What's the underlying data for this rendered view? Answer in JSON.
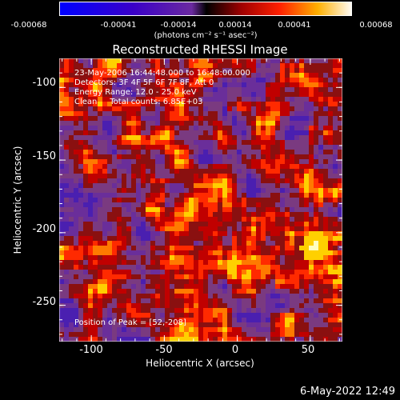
{
  "colorbar": {
    "ticks": [
      "-0.00068",
      "-0.00041",
      "-0.00014",
      "0.00014",
      "0.00041",
      "0.00068"
    ],
    "unit_label": "(photons cm⁻² s⁻¹ asec⁻²)"
  },
  "chart_data": {
    "type": "heatmap",
    "title": "Reconstructed RHESSI Image",
    "xlabel": "Heliocentric X (arcsec)",
    "ylabel": "Heliocentric Y (arcsec)",
    "xlim": [
      -122,
      72
    ],
    "ylim": [
      -275,
      -80
    ],
    "xticks": [
      "-100",
      "-50",
      "0",
      "50"
    ],
    "yticks": [
      "-100",
      "-150",
      "-200",
      "-250"
    ],
    "xtick_values": [
      -100,
      -50,
      0,
      50
    ],
    "ytick_values": [
      -100,
      -150,
      -200,
      -250
    ],
    "annotations": [
      "23-May-2006 16:44:48.000 to 16:48:00.000",
      "Detectors: 3F 4F 5F 6F 7F 8F, Att 0",
      "Energy Range: 12.0 - 25.0 keV",
      "Clean     Total counts: 6.85E+03"
    ],
    "peak_label": "Position of Peak = [52,-208]",
    "peak": [
      52,
      -208
    ],
    "value_range": [
      -0.00068,
      0.00068
    ],
    "colormap": "red-temperature"
  },
  "timestamp": "6-May-2022 12:49"
}
